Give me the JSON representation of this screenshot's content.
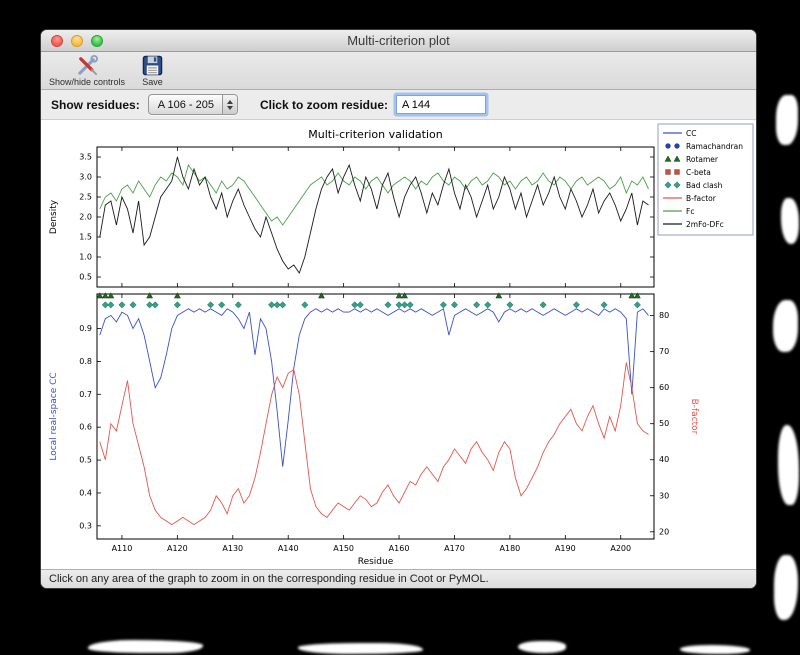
{
  "window": {
    "title": "Multi-criterion plot"
  },
  "toolbar": {
    "show_hide_label": "Show/hide controls",
    "save_label": "Save",
    "icons": {
      "show_hide": "crossed-tools-icon",
      "save": "floppy-disk-icon"
    }
  },
  "controls": {
    "show_residues_label": "Show residues:",
    "residue_range_value": "A 106 - 205",
    "zoom_label": "Click to zoom residue:",
    "zoom_value": "A 144"
  },
  "status_bar": {
    "text": "Click on any area of the graph to zoom in on the corresponding residue in Coot or PyMOL."
  },
  "legend": {
    "items": [
      {
        "label": "CC",
        "glyph": "line",
        "color": "#3c50c8"
      },
      {
        "label": "Ramachandran",
        "glyph": "circle",
        "color": "#2840b4"
      },
      {
        "label": "Rotamer",
        "glyph": "triangle",
        "color": "#1f6b1f"
      },
      {
        "label": "C-beta",
        "glyph": "square",
        "color": "#c8503c"
      },
      {
        "label": "Bad clash",
        "glyph": "diamond",
        "color": "#35a08a"
      },
      {
        "label": "B-factor",
        "glyph": "line",
        "color": "#e0584e"
      },
      {
        "label": "Fc",
        "glyph": "line",
        "color": "#4aa04a"
      },
      {
        "label": "2mFo-DFc",
        "glyph": "line",
        "color": "#1a1a1a"
      }
    ]
  },
  "chart_data": [
    {
      "type": "line",
      "title": "Multi-criterion validation",
      "ylabel": "Density",
      "ylim": [
        0.25,
        3.75
      ],
      "yticks": [
        0.5,
        1.0,
        1.5,
        2.0,
        2.5,
        3.0,
        3.5
      ],
      "x_start": 106,
      "x_end": 205,
      "series": [
        {
          "name": "Fc",
          "color": "#4aa04a",
          "values": [
            2.2,
            2.5,
            2.6,
            2.4,
            2.7,
            2.8,
            2.6,
            2.9,
            2.7,
            2.5,
            2.8,
            3.0,
            2.9,
            3.1,
            3.0,
            2.8,
            3.3,
            3.1,
            2.9,
            3.0,
            2.8,
            2.6,
            2.9,
            2.7,
            2.8,
            3.0,
            2.9,
            2.7,
            2.5,
            2.3,
            2.1,
            1.9,
            2.0,
            1.8,
            2.0,
            2.2,
            2.4,
            2.6,
            2.8,
            2.9,
            3.0,
            2.8,
            2.9,
            3.1,
            2.9,
            2.8,
            3.0,
            2.9,
            2.7,
            2.9,
            3.0,
            2.8,
            2.6,
            2.8,
            2.9,
            3.0,
            2.9,
            2.7,
            2.9,
            2.8,
            3.0,
            3.1,
            2.9,
            2.8,
            3.0,
            2.9,
            2.7,
            2.9,
            3.0,
            2.8,
            2.9,
            3.1,
            3.0,
            2.8,
            2.9,
            2.7,
            2.9,
            3.0,
            2.8,
            2.9,
            3.1,
            2.9,
            2.8,
            3.0,
            2.9,
            2.7,
            2.9,
            3.0,
            2.8,
            2.9,
            3.0,
            2.9,
            2.7,
            2.8,
            3.0,
            2.6,
            2.9,
            2.8,
            3.0,
            2.7
          ]
        },
        {
          "name": "2mFo-DFc",
          "color": "#1a1a1a",
          "values": [
            1.5,
            2.3,
            2.4,
            1.8,
            2.5,
            2.2,
            1.6,
            2.4,
            1.3,
            1.5,
            2.0,
            2.5,
            2.7,
            2.9,
            3.5,
            3.0,
            2.7,
            3.2,
            2.8,
            3.0,
            2.5,
            2.2,
            2.6,
            2.0,
            2.4,
            2.7,
            2.3,
            2.0,
            1.7,
            1.5,
            2.0,
            1.6,
            1.2,
            0.9,
            0.7,
            0.8,
            0.6,
            1.0,
            1.6,
            2.2,
            2.7,
            3.0,
            3.2,
            2.6,
            3.0,
            3.3,
            2.8,
            2.4,
            3.0,
            2.7,
            2.2,
            2.8,
            3.1,
            2.5,
            2.0,
            2.5,
            2.8,
            3.0,
            2.6,
            2.1,
            2.6,
            2.3,
            2.8,
            3.2,
            2.6,
            2.2,
            2.8,
            2.5,
            2.0,
            2.4,
            2.8,
            2.2,
            2.5,
            3.0,
            2.7,
            2.2,
            2.6,
            2.0,
            2.4,
            2.8,
            2.3,
            2.6,
            3.0,
            2.5,
            2.2,
            2.7,
            2.4,
            2.0,
            2.3,
            2.7,
            2.1,
            2.4,
            2.6,
            2.3,
            1.9,
            2.2,
            2.6,
            1.8,
            2.4,
            2.3
          ]
        }
      ]
    },
    {
      "type": "line",
      "xlabel": "Residue",
      "x_start": 106,
      "x_end": 205,
      "xticks": {
        "values": [
          110,
          120,
          130,
          140,
          150,
          160,
          170,
          180,
          190,
          200
        ],
        "labels": [
          "A110",
          "A120",
          "A130",
          "A140",
          "A150",
          "A160",
          "A170",
          "A180",
          "A190",
          "A200"
        ]
      },
      "left_axis": {
        "label": "Local real-space CC",
        "color": "#3c50c8",
        "lim": [
          0.26,
          1.005
        ],
        "ticks": [
          0.3,
          0.4,
          0.5,
          0.6,
          0.7,
          0.8,
          0.9
        ]
      },
      "right_axis": {
        "label": "B-factor",
        "color": "#e0584e",
        "lim": [
          18,
          86
        ],
        "ticks": [
          20,
          30,
          40,
          50,
          60,
          70,
          80
        ]
      },
      "series": [
        {
          "name": "CC",
          "axis": "left",
          "color": "#3c50c8",
          "values": [
            0.88,
            0.93,
            0.94,
            0.92,
            0.95,
            0.94,
            0.9,
            0.93,
            0.88,
            0.8,
            0.72,
            0.75,
            0.82,
            0.9,
            0.94,
            0.95,
            0.96,
            0.95,
            0.96,
            0.95,
            0.96,
            0.95,
            0.94,
            0.96,
            0.95,
            0.93,
            0.9,
            0.95,
            0.82,
            0.93,
            0.9,
            0.8,
            0.65,
            0.48,
            0.62,
            0.78,
            0.88,
            0.93,
            0.95,
            0.96,
            0.95,
            0.96,
            0.95,
            0.96,
            0.95,
            0.95,
            0.96,
            0.95,
            0.96,
            0.95,
            0.96,
            0.95,
            0.94,
            0.95,
            0.96,
            0.95,
            0.96,
            0.95,
            0.96,
            0.95,
            0.94,
            0.95,
            0.96,
            0.88,
            0.94,
            0.95,
            0.96,
            0.95,
            0.94,
            0.95,
            0.96,
            0.95,
            0.92,
            0.95,
            0.96,
            0.95,
            0.96,
            0.95,
            0.96,
            0.95,
            0.94,
            0.95,
            0.96,
            0.95,
            0.94,
            0.95,
            0.96,
            0.95,
            0.96,
            0.95,
            0.94,
            0.96,
            0.95,
            0.96,
            0.95,
            0.93,
            0.7,
            0.95,
            0.96,
            0.94
          ]
        },
        {
          "name": "B-factor",
          "axis": "right",
          "color": "#e0584e",
          "values": [
            45,
            40,
            50,
            48,
            55,
            62,
            50,
            44,
            38,
            30,
            26,
            24,
            23,
            22,
            23,
            24,
            23,
            22,
            23,
            24,
            26,
            30,
            28,
            25,
            30,
            32,
            28,
            30,
            35,
            42,
            50,
            58,
            63,
            60,
            64,
            65,
            58,
            45,
            32,
            27,
            25,
            24,
            26,
            28,
            27,
            26,
            28,
            30,
            29,
            27,
            28,
            31,
            33,
            30,
            28,
            31,
            34,
            33,
            36,
            38,
            36,
            34,
            38,
            40,
            43,
            41,
            39,
            43,
            45,
            42,
            40,
            37,
            42,
            45,
            43,
            35,
            30,
            32,
            35,
            38,
            42,
            45,
            47,
            50,
            52,
            54,
            50,
            48,
            52,
            55,
            50,
            46,
            52,
            48,
            55,
            67,
            60,
            50,
            48,
            47
          ]
        }
      ],
      "markers": [
        {
          "name": "Ramachandran",
          "shape": "circle",
          "color": "#2840b4",
          "y": 1.0,
          "x": []
        },
        {
          "name": "Rotamer",
          "shape": "triangle",
          "color": "#1f6b1f",
          "y": 1.0,
          "x": [
            106,
            107,
            108,
            115,
            120,
            146,
            160,
            161,
            178,
            202,
            203
          ]
        },
        {
          "name": "C-beta",
          "shape": "square",
          "color": "#c8503c",
          "y": 1.0,
          "x": []
        },
        {
          "name": "Bad clash",
          "shape": "diamond",
          "color": "#35a08a",
          "y": 0.972,
          "x": [
            107,
            108,
            110,
            112,
            115,
            116,
            120,
            126,
            128,
            131,
            137,
            138,
            139,
            143,
            152,
            153,
            158,
            160,
            161,
            162,
            168,
            170,
            174,
            176,
            180,
            186,
            192,
            197,
            203
          ]
        }
      ]
    }
  ]
}
